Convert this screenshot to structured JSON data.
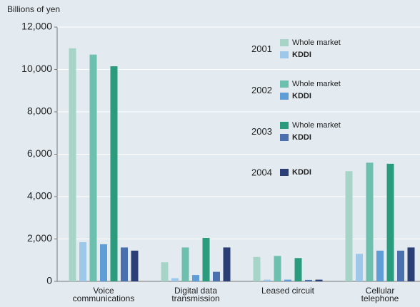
{
  "chart_data": {
    "type": "bar",
    "y_axis_label": "Billions of yen",
    "categories": [
      "Voice\ncommunications",
      "Digital data\ntransmission",
      "Leased circuit",
      "Cellular\ntelephone"
    ],
    "ylim": [
      0,
      12000
    ],
    "yticks": [
      {
        "value": 0,
        "label": "0"
      },
      {
        "value": 2000,
        "label": "2,000"
      },
      {
        "value": 4000,
        "label": "4,000"
      },
      {
        "value": 6000,
        "label": "6,000"
      },
      {
        "value": 8000,
        "label": "8,000"
      },
      {
        "value": 10000,
        "label": "10,000"
      },
      {
        "value": 12000,
        "label": "12,000"
      }
    ],
    "grid": true,
    "series": [
      {
        "year": "2001",
        "items": [
          {
            "name": "Whole market",
            "color": "#a6d4c7",
            "values": [
              11000,
              900,
              1150,
              5200
            ]
          },
          {
            "name": "KDDI",
            "color": "#9dc8ea",
            "values": [
              1850,
              150,
              80,
              1300
            ]
          }
        ]
      },
      {
        "year": "2002",
        "items": [
          {
            "name": "Whole market",
            "color": "#6dbfae",
            "values": [
              10700,
              1600,
              1200,
              5600
            ]
          },
          {
            "name": "KDDI",
            "color": "#5f9dd6",
            "values": [
              1750,
              300,
              80,
              1450
            ]
          }
        ]
      },
      {
        "year": "2003",
        "items": [
          {
            "name": "Whole market",
            "color": "#2a9c7d",
            "values": [
              10150,
              2050,
              1100,
              5550
            ]
          },
          {
            "name": "KDDI",
            "color": "#4a70ae",
            "values": [
              1600,
              450,
              70,
              1450
            ]
          }
        ]
      },
      {
        "year": "2004",
        "items": [
          {
            "name": "KDDI",
            "color": "#2b3f76",
            "values": [
              1450,
              1600,
              80,
              1600
            ]
          }
        ]
      }
    ]
  }
}
